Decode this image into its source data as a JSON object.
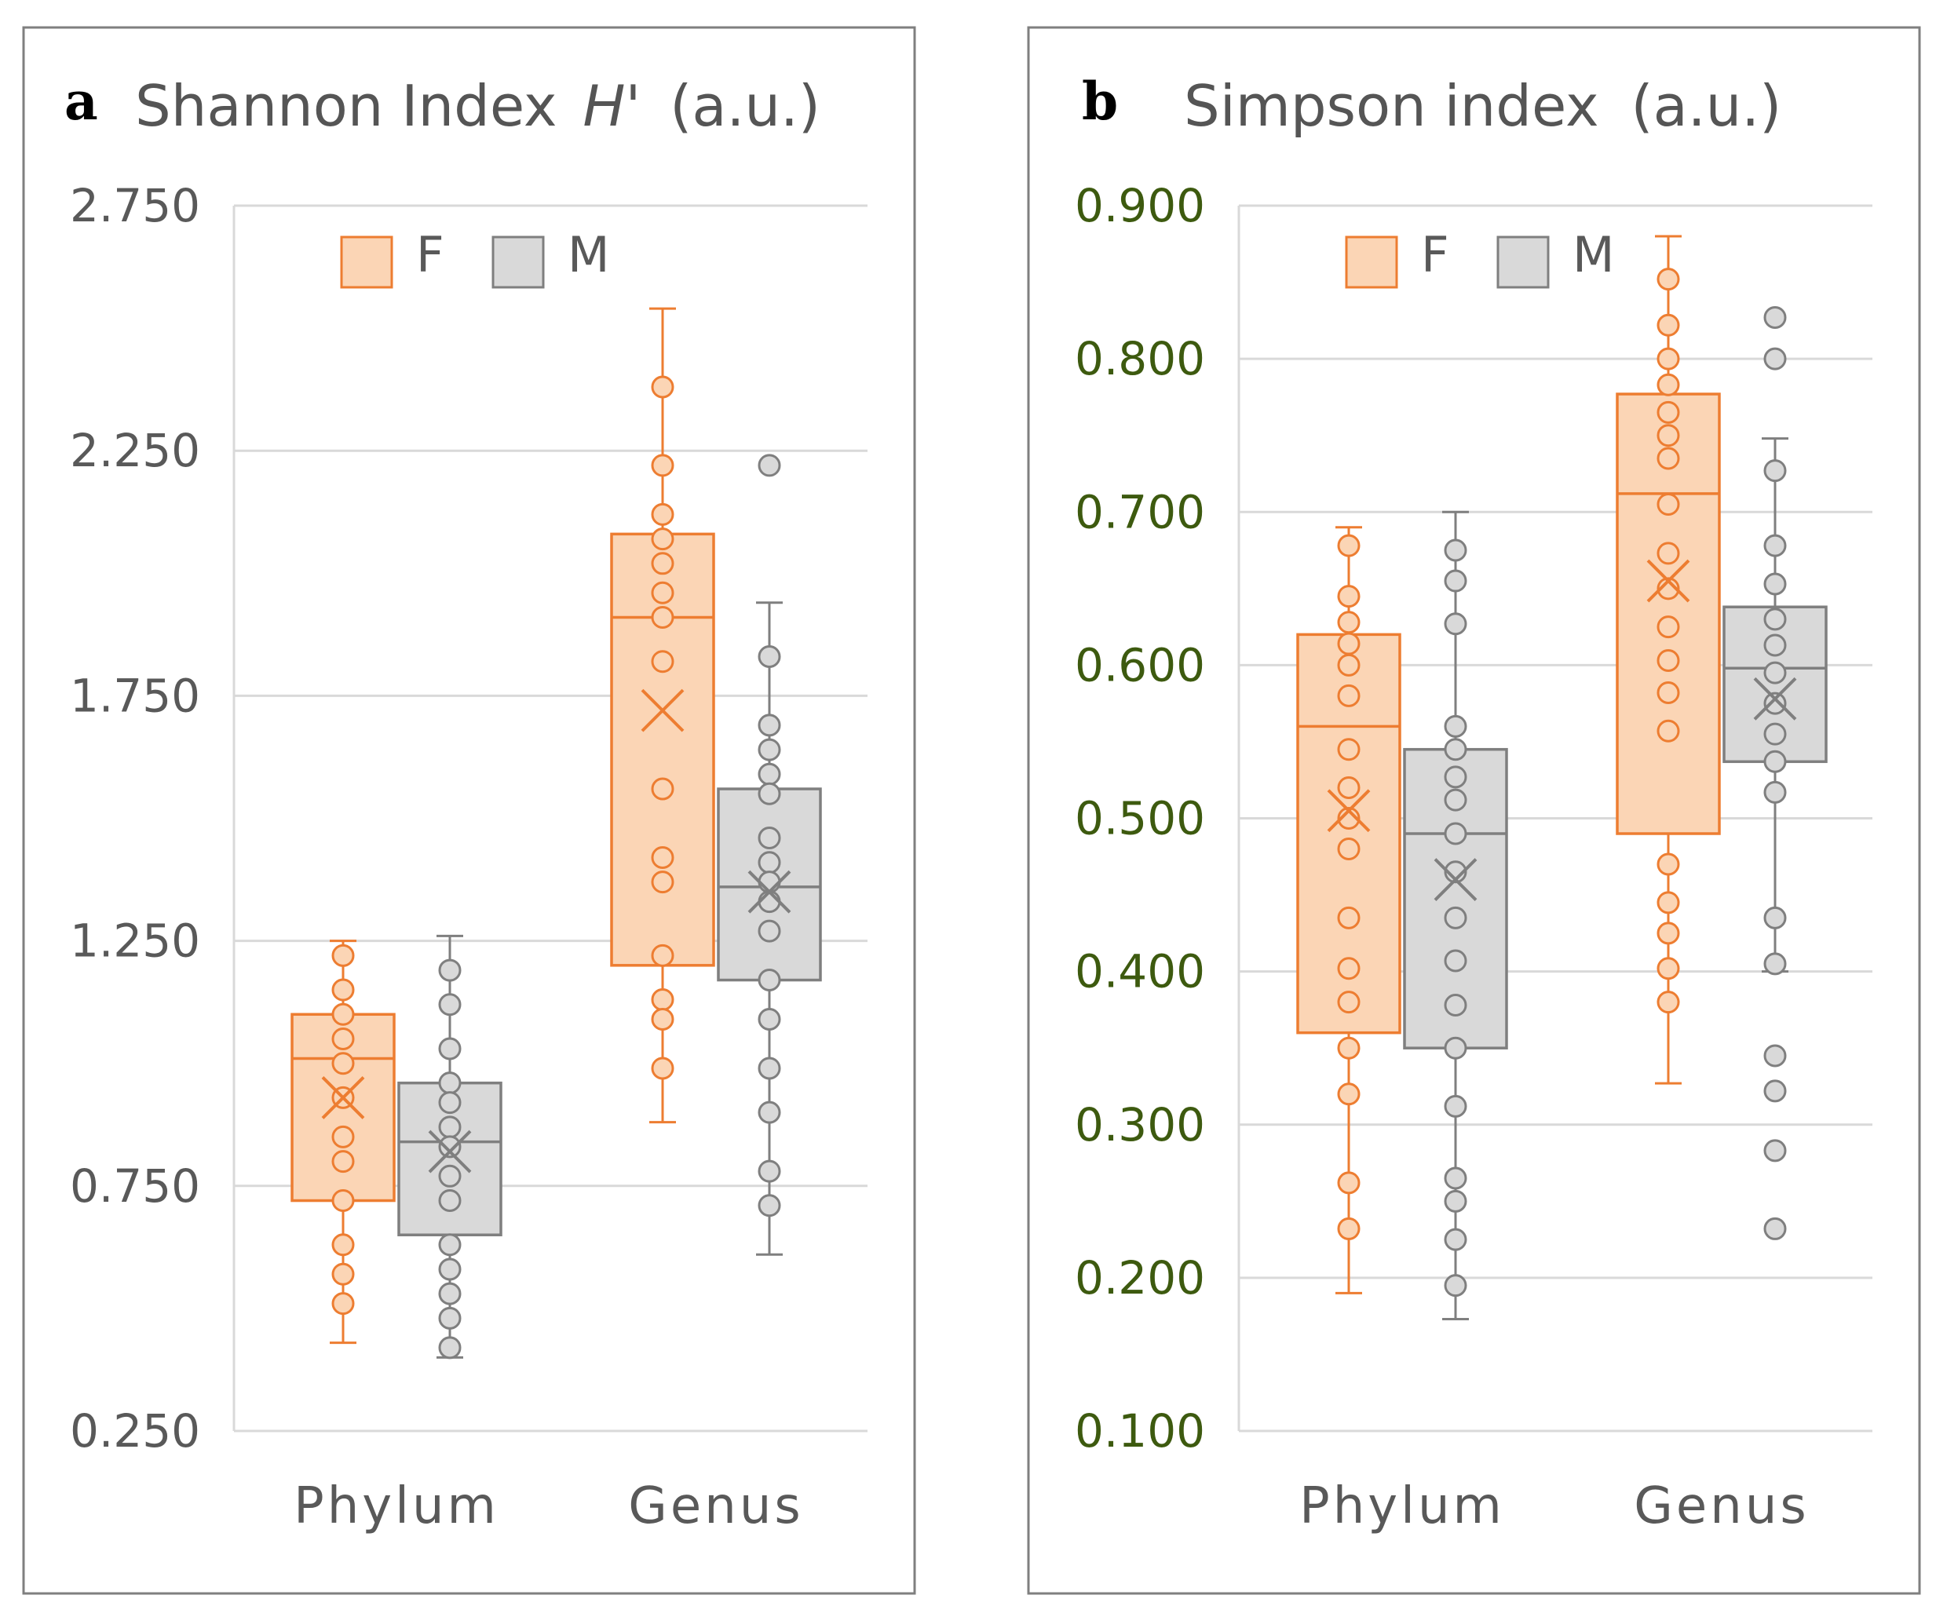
{
  "colors": {
    "F_stroke": "#ed7d31",
    "F_fill": "#fbd5b5",
    "M_stroke": "#7f7f7f",
    "M_fill": "#d9d9d9",
    "grid": "#d9d9d9",
    "frame": "#7f7f7f",
    "tick_a": "#595959",
    "tick_b": "#3d5a0f"
  },
  "chart_data": [
    {
      "type": "box",
      "panel_label": "a",
      "title": "Shannon Index",
      "title_symbol": "H'",
      "title_unit": "(a.u.)",
      "ylim": [
        0.25,
        2.75
      ],
      "yticks": [
        0.25,
        0.75,
        1.25,
        1.75,
        2.25,
        2.75
      ],
      "ytick_labels": [
        "0.250",
        "0.750",
        "1.250",
        "1.750",
        "2.250",
        "2.750"
      ],
      "categories": [
        "Phylum",
        "Genus"
      ],
      "legend": [
        "F",
        "M"
      ],
      "series": [
        {
          "name": "F",
          "boxes": [
            {
              "whisker_low": 0.43,
              "q1": 0.72,
              "median": 1.01,
              "q3": 1.1,
              "whisker_high": 1.25,
              "mean": 0.93,
              "points": [
                1.22,
                1.15,
                1.1,
                1.05,
                1.0,
                0.93,
                0.85,
                0.8,
                0.72,
                0.63,
                0.57,
                0.51
              ]
            },
            {
              "whisker_low": 0.88,
              "q1": 1.2,
              "median": 1.91,
              "q3": 2.08,
              "whisker_high": 2.54,
              "mean": 1.72,
              "points": [
                2.38,
                2.22,
                2.12,
                2.07,
                2.02,
                1.96,
                1.91,
                1.82,
                1.56,
                1.42,
                1.37,
                1.22,
                1.13,
                1.09,
                0.99
              ]
            }
          ]
        },
        {
          "name": "M",
          "boxes": [
            {
              "whisker_low": 0.4,
              "q1": 0.65,
              "median": 0.84,
              "q3": 0.96,
              "whisker_high": 1.26,
              "mean": 0.82,
              "points": [
                1.19,
                1.12,
                1.03,
                0.96,
                0.92,
                0.87,
                0.83,
                0.77,
                0.72,
                0.63,
                0.58,
                0.53,
                0.48,
                0.42
              ]
            },
            {
              "whisker_low": 0.61,
              "q1": 1.17,
              "median": 1.36,
              "q3": 1.56,
              "whisker_high": 1.94,
              "mean": 1.35,
              "points": [
                2.22,
                1.83,
                1.69,
                1.64,
                1.59,
                1.55,
                1.46,
                1.41,
                1.37,
                1.33,
                1.27,
                1.17,
                1.09,
                0.99,
                0.9,
                0.78,
                0.71
              ]
            }
          ]
        }
      ]
    },
    {
      "type": "box",
      "panel_label": "b",
      "title": "Simpson index",
      "title_unit": "(a.u.)",
      "ylim": [
        0.1,
        0.9
      ],
      "yticks": [
        0.1,
        0.2,
        0.3,
        0.4,
        0.5,
        0.6,
        0.7,
        0.8,
        0.9
      ],
      "ytick_labels": [
        "0.100",
        "0.200",
        "0.300",
        "0.400",
        "0.500",
        "0.600",
        "0.700",
        "0.800",
        "0.900"
      ],
      "categories": [
        "Phylum",
        "Genus"
      ],
      "legend": [
        "F",
        "M"
      ],
      "series": [
        {
          "name": "F",
          "boxes": [
            {
              "whisker_low": 0.19,
              "q1": 0.36,
              "median": 0.56,
              "q3": 0.62,
              "whisker_high": 0.69,
              "mean": 0.505,
              "points": [
                0.678,
                0.645,
                0.628,
                0.614,
                0.6,
                0.58,
                0.545,
                0.52,
                0.5,
                0.48,
                0.435,
                0.402,
                0.38,
                0.35,
                0.32,
                0.262,
                0.232
              ]
            },
            {
              "whisker_low": 0.327,
              "q1": 0.49,
              "median": 0.712,
              "q3": 0.777,
              "whisker_high": 0.88,
              "mean": 0.655,
              "points": [
                0.852,
                0.822,
                0.8,
                0.783,
                0.765,
                0.75,
                0.735,
                0.705,
                0.673,
                0.65,
                0.625,
                0.603,
                0.582,
                0.557,
                0.47,
                0.445,
                0.425,
                0.402,
                0.38
              ]
            }
          ]
        },
        {
          "name": "M",
          "boxes": [
            {
              "whisker_low": 0.173,
              "q1": 0.35,
              "median": 0.49,
              "q3": 0.545,
              "whisker_high": 0.7,
              "mean": 0.46,
              "points": [
                0.675,
                0.655,
                0.627,
                0.56,
                0.545,
                0.527,
                0.512,
                0.49,
                0.465,
                0.435,
                0.407,
                0.378,
                0.35,
                0.312,
                0.265,
                0.25,
                0.225,
                0.195
              ]
            },
            {
              "whisker_low": 0.4,
              "q1": 0.537,
              "median": 0.598,
              "q3": 0.638,
              "whisker_high": 0.748,
              "mean": 0.578,
              "points": [
                0.827,
                0.8,
                0.727,
                0.678,
                0.653,
                0.63,
                0.613,
                0.595,
                0.575,
                0.555,
                0.537,
                0.517,
                0.435,
                0.405,
                0.345,
                0.322,
                0.283,
                0.232
              ]
            }
          ]
        }
      ]
    }
  ]
}
